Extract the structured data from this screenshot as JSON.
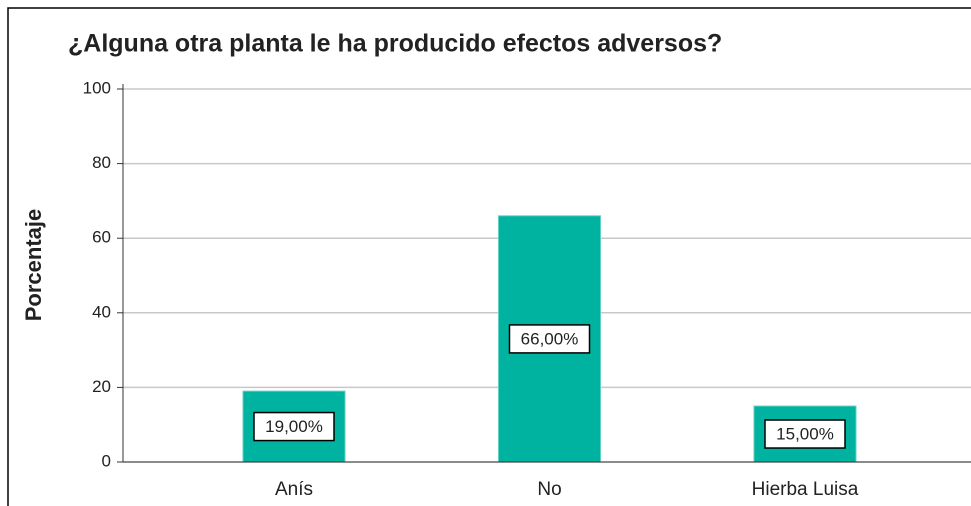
{
  "chart_data": {
    "type": "bar",
    "title": "¿Alguna otra planta le ha producido efectos adversos?",
    "y_label": "Porcentaje",
    "categories": [
      "Anís",
      "No",
      "Hierba Luisa"
    ],
    "values": [
      19,
      66,
      15
    ],
    "value_labels": [
      "19,00%",
      "66,00%",
      "15,00%"
    ],
    "color": "#00b2a0",
    "ylim": [
      0,
      100
    ],
    "yticks": [
      0,
      20,
      40,
      60,
      80,
      100
    ],
    "grid": true
  }
}
